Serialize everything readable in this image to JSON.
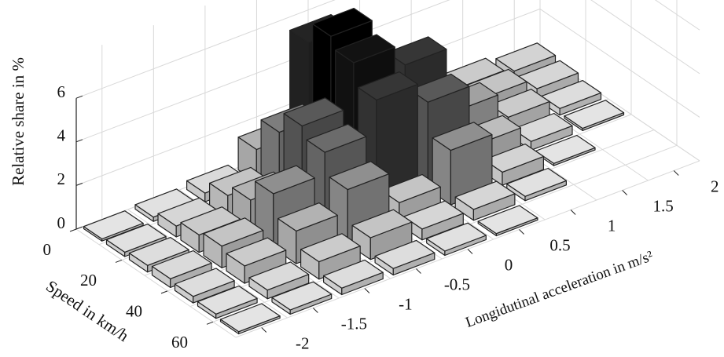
{
  "chart_data": {
    "type": "bar3d",
    "xlabel": "Longidutinal acceleration in m/s²",
    "ylabel": "Speed in km/h",
    "zlabel": "Relative share in %",
    "x": [
      -2,
      -1.5,
      -1,
      -0.5,
      0,
      0.5,
      1,
      1.5,
      2
    ],
    "y": [
      5,
      15,
      25,
      35,
      45,
      55,
      65
    ],
    "values": [
      [
        0.1,
        0.2,
        0.4,
        1.5,
        5.5,
        2.0,
        1.0,
        0.8,
        0.6
      ],
      [
        0.2,
        0.5,
        1.0,
        3.0,
        6.5,
        3.5,
        1.5,
        1.0,
        0.5
      ],
      [
        0.3,
        0.8,
        1.5,
        4.0,
        6.0,
        5.0,
        2.0,
        0.8,
        0.3
      ],
      [
        0.4,
        1.0,
        2.5,
        3.5,
        5.0,
        4.0,
        1.2,
        0.4,
        0.1
      ],
      [
        0.3,
        0.8,
        1.5,
        2.5,
        1.0,
        2.5,
        0.6,
        0.1,
        0
      ],
      [
        0.2,
        0.4,
        0.8,
        1.0,
        0.5,
        0.5,
        0.2,
        0,
        0
      ],
      [
        0.1,
        0.2,
        0.3,
        0.3,
        0.2,
        0.1,
        0,
        0,
        0
      ]
    ],
    "xlim": [
      -2.25,
      2.25
    ],
    "xticks": [
      -2,
      -1.5,
      -1,
      -0.5,
      0,
      0.5,
      1,
      1.5,
      2
    ],
    "ylim": [
      0,
      70
    ],
    "yticks": [
      0,
      20,
      40,
      60
    ],
    "zlim": [
      0,
      8
    ],
    "zticks": [
      0,
      2,
      4,
      6
    ],
    "clim": [
      0,
      6.5
    ],
    "color_low": "#e8e8e8",
    "color_high": "#000000",
    "grid": true
  }
}
